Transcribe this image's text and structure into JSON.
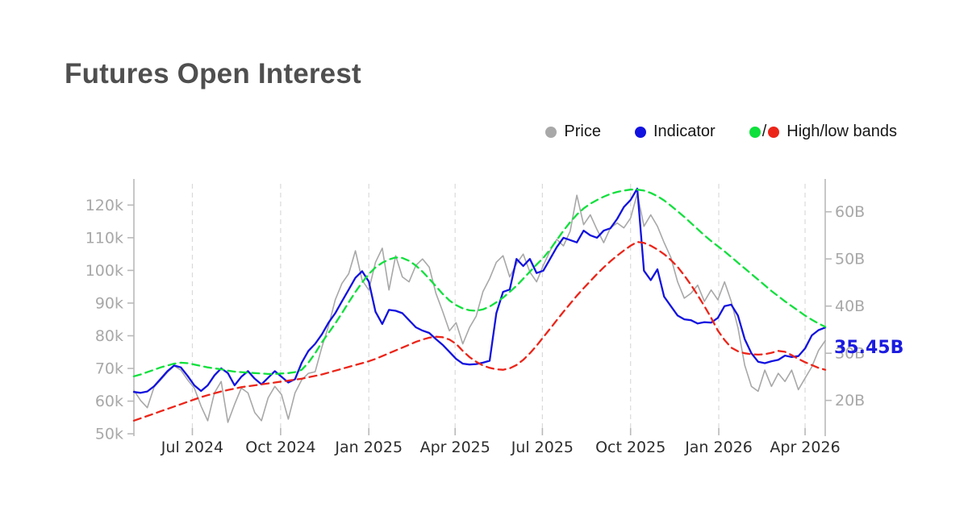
{
  "title": {
    "text": "Futures Open Interest"
  },
  "legend": {
    "price_label": "Price",
    "indicator_label": "Indicator",
    "bands_label": "High/low bands",
    "separator": "/"
  },
  "annotation": {
    "last_value_label": "35.45B"
  },
  "colors": {
    "price": "#a8a8a8",
    "indicator": "#1212e0",
    "band_high": "#0fe03c",
    "band_low": "#ec2418",
    "grid": "#dadada",
    "axis": "#b9b9b9",
    "y_tick_label": "#a8a8a8",
    "x_tick_label": "#2d2d2d",
    "title": "#4f4f4f",
    "legend_text": "#161616",
    "annotation": "#1b1be0",
    "background": "#ffffff"
  },
  "chart_data": {
    "type": "line",
    "title": "Futures Open Interest",
    "grid": "vertical-dashed",
    "legend_position": "top-right",
    "x_unit": "weeks, May 2024 - Apr 2026",
    "n_points": 104,
    "x_ticks": [
      {
        "pos": 8.71,
        "label": "Jul 2024"
      },
      {
        "pos": 21.86,
        "label": "Oct 2024"
      },
      {
        "pos": 35.0,
        "label": "Jan 2025"
      },
      {
        "pos": 47.86,
        "label": "Apr 2025"
      },
      {
        "pos": 60.86,
        "label": "Jul 2025"
      },
      {
        "pos": 74.0,
        "label": "Oct 2025"
      },
      {
        "pos": 87.14,
        "label": "Jan 2026"
      },
      {
        "pos": 100.0,
        "label": "Apr 2026"
      }
    ],
    "left_axis": {
      "min": 48.3,
      "max": 126.5,
      "unit": "k",
      "ticks": [
        {
          "v": 50,
          "label": "50k"
        },
        {
          "v": 60,
          "label": "60k"
        },
        {
          "v": 70,
          "label": "70k"
        },
        {
          "v": 80,
          "label": "80k"
        },
        {
          "v": 90,
          "label": "90k"
        },
        {
          "v": 100,
          "label": "100k"
        },
        {
          "v": 110,
          "label": "110k"
        },
        {
          "v": 120,
          "label": "120k"
        }
      ]
    },
    "right_axis": {
      "min": 11.74,
      "max": 65.93,
      "unit": "B",
      "ticks": [
        {
          "v": 20,
          "label": "20B"
        },
        {
          "v": 30,
          "label": "30B"
        },
        {
          "v": 40,
          "label": "40B"
        },
        {
          "v": 50,
          "label": "50B"
        },
        {
          "v": 60,
          "label": "60B"
        }
      ]
    },
    "series": [
      {
        "name": "Price",
        "axis": "left",
        "style": "solid",
        "width": 1.6,
        "color_key": "price",
        "data_name": "price-line",
        "values": [
          63.3,
          60.2,
          58,
          64.3,
          66.5,
          68.8,
          70.8,
          69.5,
          66.5,
          64,
          58.5,
          54,
          62.5,
          66,
          53.5,
          59,
          64,
          62.5,
          56.5,
          54,
          61,
          64.5,
          62,
          54.5,
          62.5,
          66.5,
          68.5,
          69,
          76.5,
          83,
          91,
          96,
          99,
          106,
          97,
          94,
          102.5,
          106.8,
          94,
          104.5,
          98,
          96.5,
          101.5,
          103.5,
          101,
          93,
          87.5,
          81.5,
          84,
          77.5,
          82.5,
          86,
          93.5,
          97.5,
          102.5,
          104.5,
          98,
          102,
          105,
          99.5,
          96.5,
          101.5,
          106,
          109.5,
          107.5,
          112,
          123,
          114,
          117,
          112.5,
          108.5,
          113,
          114.5,
          113,
          116,
          123.5,
          113.5,
          117,
          113.5,
          108.5,
          104,
          96.5,
          91.5,
          93,
          95.5,
          90.5,
          94,
          91,
          96.5,
          90.5,
          82.5,
          71,
          64.5,
          63,
          69.5,
          64.5,
          68.5,
          66,
          69.5,
          63.5,
          67,
          70.5,
          75.5,
          78.5
        ]
      },
      {
        "name": "Indicator",
        "axis": "right",
        "style": "solid",
        "width": 2.3,
        "color_key": "indicator",
        "data_name": "indicator-line",
        "values": [
          21.8,
          21.6,
          21.9,
          23,
          24.6,
          26.2,
          27.4,
          27,
          25.2,
          23.2,
          22,
          23.2,
          25.3,
          26.8,
          25.8,
          23.2,
          25,
          26.2,
          24.6,
          23.4,
          24.8,
          26.2,
          25,
          23.8,
          24.5,
          28,
          30.5,
          32,
          34,
          36.5,
          38.5,
          41,
          43.5,
          46,
          47.4,
          45.2,
          38.8,
          36.2,
          39.2,
          39,
          38.5,
          37,
          35.5,
          34.8,
          34.3,
          33,
          31.8,
          30.3,
          28.8,
          27.8,
          27.6,
          27.7,
          28,
          28.4,
          38.5,
          43,
          43.5,
          50,
          48.5,
          50,
          47,
          47.5,
          50,
          52.5,
          54.5,
          54,
          53.5,
          56,
          55,
          54.5,
          56,
          56.5,
          58.5,
          61,
          62.5,
          64.9,
          47.5,
          45.5,
          47.8,
          42,
          40,
          38,
          37.2,
          37,
          36.3,
          36.6,
          36.5,
          37.5,
          40,
          40.3,
          38,
          33,
          30,
          28.2,
          27.9,
          28.3,
          28.6,
          29.5,
          29.2,
          29.4,
          31,
          33.8,
          34.9,
          35.45
        ]
      },
      {
        "name": "High band",
        "axis": "right",
        "style": "dashed",
        "width": 2.3,
        "color_key": "band_high",
        "data_name": "high-band-line",
        "values": [
          25.1,
          25.5,
          26,
          26.5,
          27,
          27.4,
          27.8,
          28,
          27.9,
          27.6,
          27.3,
          27,
          26.8,
          26.6,
          26.3,
          26.1,
          26,
          25.9,
          25.8,
          25.7,
          25.6,
          25.6,
          25.7,
          25.8,
          26,
          26.5,
          28,
          30,
          32.3,
          34.3,
          36.3,
          38.5,
          40.8,
          43,
          45,
          46.8,
          48.2,
          49.2,
          49.9,
          50.3,
          50.2,
          49.6,
          48.6,
          47.3,
          45.8,
          44.2,
          42.6,
          41.2,
          40.2,
          39.5,
          39.1,
          39,
          39.3,
          39.9,
          40.8,
          41.8,
          43,
          44.3,
          45.8,
          47.3,
          48.8,
          50.2,
          52,
          54,
          56,
          57.8,
          59.4,
          60.7,
          61.7,
          62.5,
          63.2,
          63.8,
          64.2,
          64.5,
          64.7,
          64.7,
          64.5,
          64,
          63.3,
          62.4,
          61.3,
          60.1,
          58.9,
          57.6,
          56.3,
          55,
          53.8,
          52.7,
          51.6,
          50.4,
          49.2,
          48,
          46.8,
          45.6,
          44.4,
          43.2,
          42.1,
          41,
          40,
          39,
          38,
          37.1,
          36.3,
          35.6
        ]
      },
      {
        "name": "Low band",
        "axis": "right",
        "style": "dashed",
        "width": 2.3,
        "color_key": "band_low",
        "data_name": "low-band-line",
        "values": [
          15.7,
          16.2,
          16.7,
          17.2,
          17.7,
          18.2,
          18.7,
          19.2,
          19.7,
          20.2,
          20.7,
          21.1,
          21.5,
          21.9,
          22.2,
          22.5,
          22.8,
          23,
          23.2,
          23.4,
          23.6,
          23.8,
          24,
          24.2,
          24.4,
          24.6,
          24.9,
          25.2,
          25.5,
          25.9,
          26.3,
          26.7,
          27.1,
          27.5,
          27.9,
          28.3,
          28.8,
          29.4,
          30,
          30.6,
          31.2,
          31.8,
          32.4,
          32.9,
          33.3,
          33.5,
          33.4,
          32.9,
          32,
          30.5,
          29.2,
          28.2,
          27.4,
          26.9,
          26.6,
          26.5,
          26.8,
          27.5,
          28.6,
          30,
          31.6,
          33.4,
          35.2,
          37,
          38.8,
          40.5,
          42.2,
          43.8,
          45.3,
          46.8,
          48.2,
          49.5,
          50.7,
          51.8,
          52.8,
          53.6,
          53.4,
          52.8,
          52,
          51,
          49.8,
          48.3,
          46.5,
          44.5,
          42.3,
          40,
          37.5,
          34.8,
          32.8,
          31.2,
          30.4,
          30,
          29.8,
          29.7,
          29.8,
          30.1,
          30.5,
          30.3,
          29.6,
          28.8,
          28.1,
          27.5,
          26.9,
          26.5
        ]
      }
    ]
  }
}
